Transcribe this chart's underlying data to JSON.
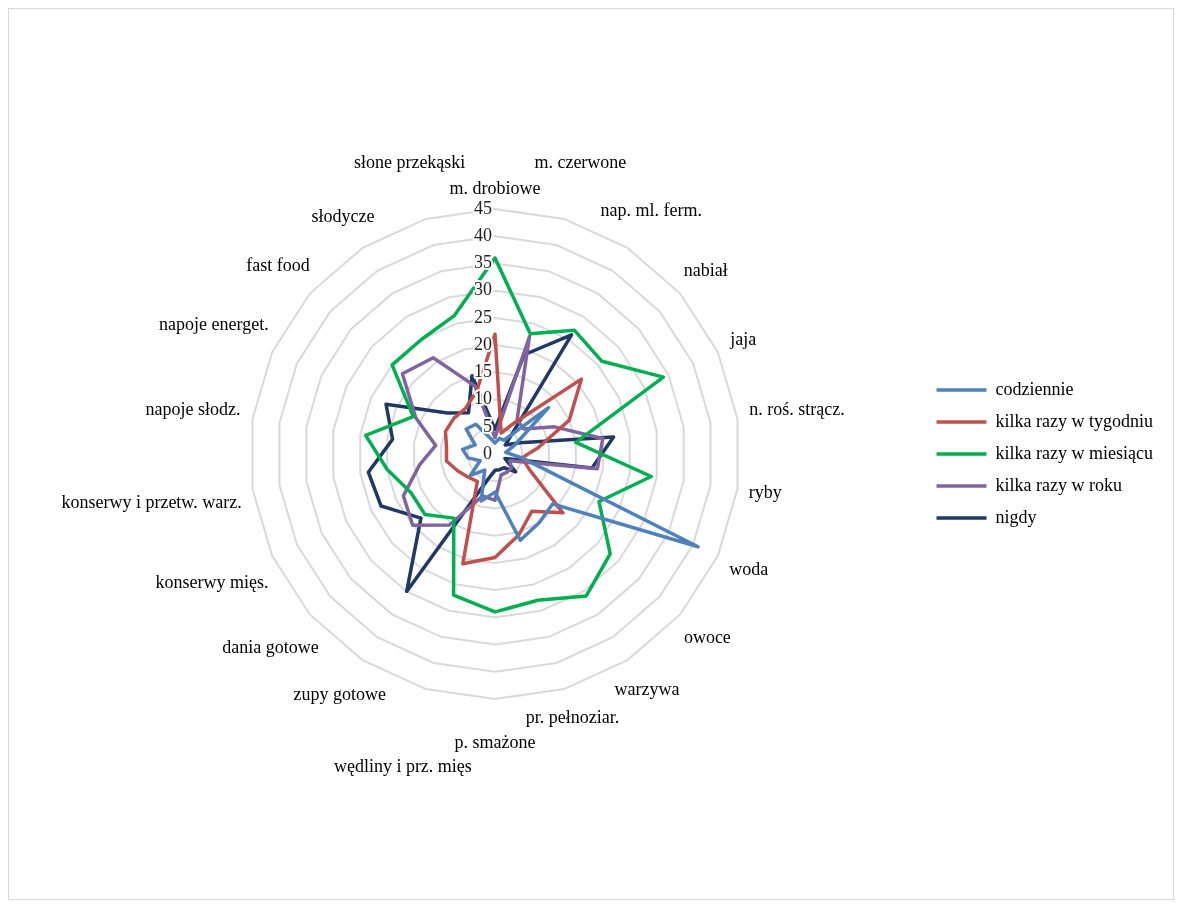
{
  "chart_data": {
    "type": "radar",
    "categories": [
      "m. drobiowe",
      "m. czerwone",
      "nap. ml. ferm.",
      "nabiał",
      "jaja",
      "n. roś. strącz.",
      "ryby",
      "woda",
      "owoce",
      "warzywa",
      "pr. pełnoziar.",
      "p. smażone",
      "wędliny i prz. mięs",
      "zupy gotowe",
      "dania gotowe",
      "konserwy mięs.",
      "konserwy i przetw. warz.",
      "napoje słodz.",
      "napoje energet.",
      "fast food",
      "słodycze",
      "słone przekąski"
    ],
    "series": [
      {
        "name": "codziennie",
        "color": "#4f81bd",
        "values": [
          2,
          3,
          3,
          13,
          4,
          2,
          5,
          41,
          14,
          15,
          16.5,
          7,
          9,
          3.5,
          6,
          3,
          5,
          6,
          4,
          7,
          6.5,
          3
        ]
      },
      {
        "name": "kilka razy w tygodniu",
        "color": "#c0504d",
        "values": [
          22,
          4,
          7,
          21,
          15,
          8,
          5,
          7,
          16.5,
          12.5,
          15.5,
          19,
          21,
          6,
          6.5,
          7.5,
          9,
          9,
          10,
          10,
          10,
          12
        ]
      },
      {
        "name": "kilka razy w miesiącu",
        "color": "#00b050",
        "values": [
          36,
          23,
          27,
          26,
          34,
          15,
          29,
          21,
          28,
          31,
          28,
          29,
          27,
          14,
          17,
          17,
          20,
          24,
          16.5,
          25,
          25,
          26.5
        ]
      },
      {
        "name": "kilka razy w roku",
        "color": "#8064a2",
        "values": [
          3,
          22.5,
          7.5,
          7,
          12,
          20,
          19,
          3,
          4,
          4,
          4,
          8.5,
          8,
          15.5,
          20,
          18.5,
          14,
          11,
          16,
          22.5,
          21,
          13
        ]
      },
      {
        "name": "nigdy",
        "color": "#1f3864",
        "values": [
          4.5,
          19,
          26,
          2.5,
          5,
          22,
          18,
          2,
          5,
          3,
          3,
          3,
          5,
          30,
          18,
          23,
          23.5,
          19,
          22,
          11.5,
          9,
          15
        ]
      }
    ],
    "ylim": [
      0,
      45
    ],
    "yticks": [
      0,
      5,
      10,
      15,
      20,
      25,
      30,
      35,
      40,
      45
    ],
    "grid": true,
    "legend": "right",
    "marker": "none"
  }
}
